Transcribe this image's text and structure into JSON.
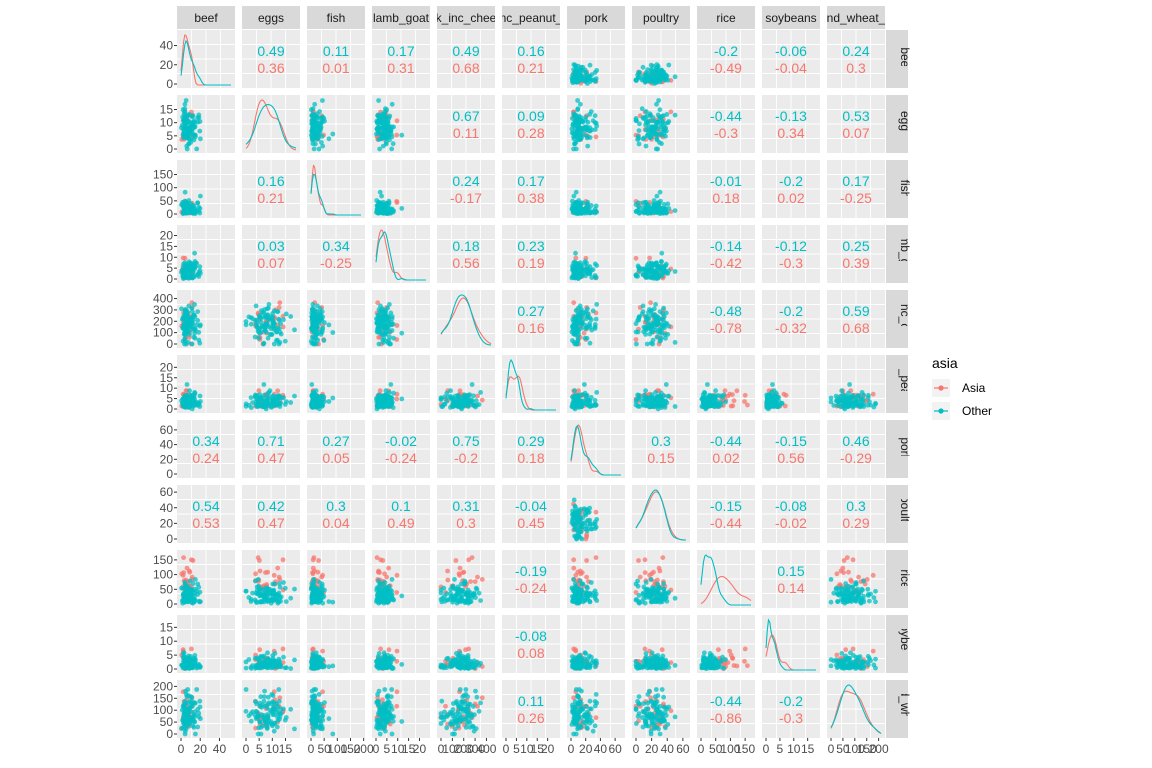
{
  "chart_data": {
    "type": "scatter",
    "variables": [
      "beef",
      "eggs",
      "fish",
      "lamb_goat",
      "k_inc_chee",
      "nc_peanut_",
      "pork",
      "poultry",
      "rice",
      "soybeans",
      "nd_wheat_"
    ],
    "column_strip_labels": [
      "beef",
      "eggs",
      "fish",
      "lamb_goat",
      "k_inc_chee",
      "nc_peanut_",
      "pork",
      "poultry",
      "rice",
      "soybeans",
      "nd_wheat_"
    ],
    "row_strip_labels": [
      "beef",
      "eggs",
      "fish",
      "lamb_goat",
      "k_inc_chee",
      "nc_peanut",
      "pork",
      "poultry",
      "rice",
      "soybeans",
      "nd_wheat"
    ],
    "y_tick_labels": [
      [
        "0",
        "20",
        "40"
      ],
      [
        "0",
        "5",
        "10",
        "15"
      ],
      [
        "0",
        "50",
        "100",
        "150"
      ],
      [
        "0",
        "5",
        "10",
        "15",
        "20"
      ],
      [
        "0",
        "100",
        "200",
        "300",
        "400"
      ],
      [
        "0",
        "5",
        "10",
        "15",
        "20"
      ],
      [
        "0",
        "20",
        "40",
        "60"
      ],
      [
        "0",
        "20",
        "40",
        "60"
      ],
      [
        "0",
        "50",
        "100",
        "150"
      ],
      [
        "0",
        "5",
        "10",
        "15"
      ],
      [
        "0",
        "50",
        "100",
        "150",
        "200"
      ]
    ],
    "x_tick_labels": [
      [
        "0",
        "20",
        "40"
      ],
      [
        "0",
        "5",
        "10",
        "15"
      ],
      [
        "0",
        "50",
        "100",
        "150",
        "200"
      ],
      [
        "0",
        "5",
        "10",
        "15",
        "20"
      ],
      [
        "0",
        "100",
        "200",
        "300",
        "400"
      ],
      [
        "0",
        "5",
        "10",
        "15",
        "20"
      ],
      [
        "0",
        "20",
        "40",
        "60"
      ],
      [
        "0",
        "20",
        "40",
        "60"
      ],
      [
        "0",
        "50",
        "100",
        "150"
      ],
      [
        "0",
        "5",
        "10",
        "15"
      ],
      [
        "0",
        "50",
        "100",
        "150",
        "200"
      ]
    ],
    "ranges": [
      [
        0,
        52
      ],
      [
        0,
        19
      ],
      [
        0,
        190
      ],
      [
        0,
        23
      ],
      [
        0,
        440
      ],
      [
        0,
        24
      ],
      [
        0,
        68
      ],
      [
        0,
        64
      ],
      [
        0,
        170
      ],
      [
        0,
        18
      ],
      [
        0,
        210
      ]
    ],
    "correlations": [
      {
        "row": 0,
        "col": 1,
        "other": "0.49",
        "asia": "0.36"
      },
      {
        "row": 0,
        "col": 2,
        "other": "0.11",
        "asia": "0.01"
      },
      {
        "row": 0,
        "col": 3,
        "other": "0.17",
        "asia": "0.31"
      },
      {
        "row": 0,
        "col": 4,
        "other": "0.49",
        "asia": "0.68"
      },
      {
        "row": 0,
        "col": 5,
        "other": "0.16",
        "asia": "0.21"
      },
      {
        "row": 0,
        "col": 8,
        "other": "-0.2",
        "asia": "-0.49"
      },
      {
        "row": 0,
        "col": 9,
        "other": "-0.06",
        "asia": "-0.04"
      },
      {
        "row": 0,
        "col": 10,
        "other": "0.24",
        "asia": "0.3"
      },
      {
        "row": 1,
        "col": 4,
        "other": "0.67",
        "asia": "0.11"
      },
      {
        "row": 1,
        "col": 5,
        "other": "0.09",
        "asia": "0.28"
      },
      {
        "row": 1,
        "col": 8,
        "other": "-0.44",
        "asia": "-0.3"
      },
      {
        "row": 1,
        "col": 9,
        "other": "-0.13",
        "asia": "0.34"
      },
      {
        "row": 1,
        "col": 10,
        "other": "0.53",
        "asia": "0.07"
      },
      {
        "row": 2,
        "col": 1,
        "other": "0.16",
        "asia": "0.21"
      },
      {
        "row": 2,
        "col": 4,
        "other": "0.24",
        "asia": "-0.17"
      },
      {
        "row": 2,
        "col": 5,
        "other": "0.17",
        "asia": "0.38"
      },
      {
        "row": 2,
        "col": 8,
        "other": "-0.01",
        "asia": "0.18"
      },
      {
        "row": 2,
        "col": 9,
        "other": "-0.2",
        "asia": "0.02"
      },
      {
        "row": 2,
        "col": 10,
        "other": "0.17",
        "asia": "-0.25"
      },
      {
        "row": 3,
        "col": 1,
        "other": "0.03",
        "asia": "0.07"
      },
      {
        "row": 3,
        "col": 2,
        "other": "0.34",
        "asia": "-0.25"
      },
      {
        "row": 3,
        "col": 4,
        "other": "0.18",
        "asia": "0.56"
      },
      {
        "row": 3,
        "col": 5,
        "other": "0.23",
        "asia": "0.19"
      },
      {
        "row": 3,
        "col": 8,
        "other": "-0.14",
        "asia": "-0.42"
      },
      {
        "row": 3,
        "col": 9,
        "other": "-0.12",
        "asia": "-0.3"
      },
      {
        "row": 3,
        "col": 10,
        "other": "0.25",
        "asia": "0.39"
      },
      {
        "row": 4,
        "col": 5,
        "other": "0.27",
        "asia": "0.16"
      },
      {
        "row": 4,
        "col": 8,
        "other": "-0.48",
        "asia": "-0.78"
      },
      {
        "row": 4,
        "col": 9,
        "other": "-0.2",
        "asia": "-0.32"
      },
      {
        "row": 4,
        "col": 10,
        "other": "0.59",
        "asia": "0.68"
      },
      {
        "row": 6,
        "col": 0,
        "other": "0.34",
        "asia": "0.24"
      },
      {
        "row": 6,
        "col": 1,
        "other": "0.71",
        "asia": "0.47"
      },
      {
        "row": 6,
        "col": 2,
        "other": "0.27",
        "asia": "0.05"
      },
      {
        "row": 6,
        "col": 3,
        "other": "-0.02",
        "asia": "-0.24"
      },
      {
        "row": 6,
        "col": 4,
        "other": "0.75",
        "asia": "-0.2"
      },
      {
        "row": 6,
        "col": 5,
        "other": "0.29",
        "asia": "0.18"
      },
      {
        "row": 6,
        "col": 7,
        "other": "0.3",
        "asia": "0.15"
      },
      {
        "row": 6,
        "col": 8,
        "other": "-0.44",
        "asia": "0.02"
      },
      {
        "row": 6,
        "col": 9,
        "other": "-0.15",
        "asia": "0.56"
      },
      {
        "row": 6,
        "col": 10,
        "other": "0.46",
        "asia": "-0.29"
      },
      {
        "row": 7,
        "col": 0,
        "other": "0.54",
        "asia": "0.53"
      },
      {
        "row": 7,
        "col": 1,
        "other": "0.42",
        "asia": "0.47"
      },
      {
        "row": 7,
        "col": 2,
        "other": "0.3",
        "asia": "0.04"
      },
      {
        "row": 7,
        "col": 3,
        "other": "0.1",
        "asia": "0.49"
      },
      {
        "row": 7,
        "col": 4,
        "other": "0.31",
        "asia": "0.3"
      },
      {
        "row": 7,
        "col": 5,
        "other": "-0.04",
        "asia": "0.45"
      },
      {
        "row": 7,
        "col": 8,
        "other": "-0.15",
        "asia": "-0.44"
      },
      {
        "row": 7,
        "col": 9,
        "other": "-0.08",
        "asia": "-0.02"
      },
      {
        "row": 7,
        "col": 10,
        "other": "0.3",
        "asia": "0.29"
      },
      {
        "row": 8,
        "col": 5,
        "other": "-0.19",
        "asia": "-0.24"
      },
      {
        "row": 8,
        "col": 9,
        "other": "0.15",
        "asia": "0.14"
      },
      {
        "row": 9,
        "col": 5,
        "other": "-0.08",
        "asia": "0.08"
      },
      {
        "row": 10,
        "col": 5,
        "other": "0.11",
        "asia": "0.26"
      },
      {
        "row": 10,
        "col": 8,
        "other": "-0.44",
        "asia": "-0.86"
      },
      {
        "row": 10,
        "col": 9,
        "other": "-0.2",
        "asia": "-0.3"
      }
    ],
    "density_peaks": {
      "beef": {
        "asia": 8,
        "other": 6
      },
      "eggs": {
        "asia": 8,
        "other": 11
      },
      "fish": {
        "asia": 12,
        "other": 10
      },
      "lamb_goat": {
        "asia": 1.5,
        "other": 1
      },
      "k_inc_chee": {
        "asia": 90,
        "other": 110
      },
      "nc_peanut_": {
        "asia": 2,
        "other": 2
      },
      "pork": {
        "asia": 6,
        "other": 6
      },
      "poultry": {
        "asia": 18,
        "other": 18
      },
      "rice": {
        "asia": 25,
        "other": 8
      },
      "soybeans": {
        "asia": 0.5,
        "other": 0.5
      },
      "nd_wheat_": {
        "asia": 60,
        "other": 90
      }
    },
    "legend": {
      "title": "asia",
      "placement": "right",
      "entries": [
        {
          "label": "Asia",
          "color": "#F8766D"
        },
        {
          "label": "Other",
          "color": "#00BFC4"
        }
      ]
    },
    "colors": {
      "asia": "#F8766D",
      "other": "#00BFC4",
      "panel": "#EBEBEB",
      "strip": "#D9D9D9",
      "grid": "#FFFFFF"
    },
    "grid": true
  }
}
